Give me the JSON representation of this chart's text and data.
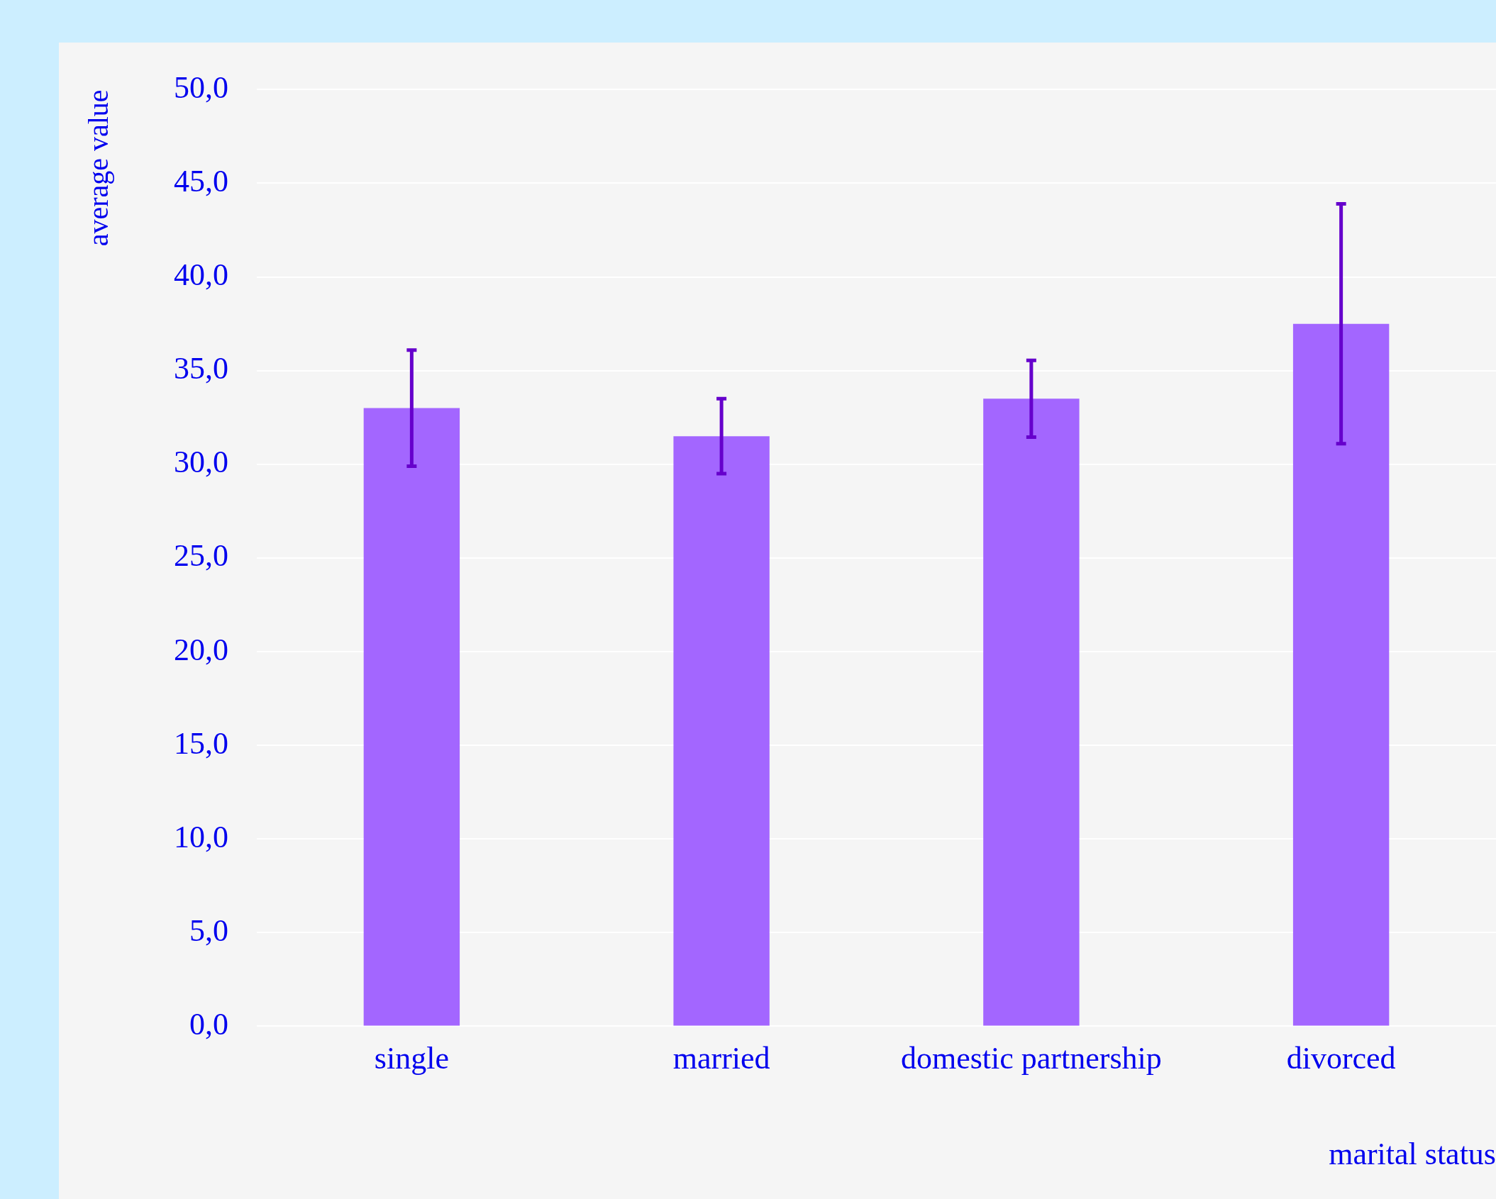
{
  "chart_data": {
    "type": "bar",
    "xlabel": "marital status",
    "ylabel": "average value",
    "categories": [
      "single",
      "married",
      "domestic partnership",
      "divorced"
    ],
    "values": [
      33.0,
      31.5,
      33.5,
      37.5
    ],
    "errors": [
      3.1,
      2.0,
      2.05,
      6.4
    ],
    "color": "#a366ff",
    "ylim": [
      0,
      50
    ],
    "yticks": [
      {
        "value": 0,
        "label": "0,0"
      },
      {
        "value": 5,
        "label": "5,0"
      },
      {
        "value": 10,
        "label": "10,0"
      },
      {
        "value": 15,
        "label": "15,0"
      },
      {
        "value": 20,
        "label": "20,0"
      },
      {
        "value": 25,
        "label": "25,0"
      },
      {
        "value": 30,
        "label": "30,0"
      },
      {
        "value": 35,
        "label": "35,0"
      },
      {
        "value": 40,
        "label": "40,0"
      },
      {
        "value": 45,
        "label": "45,0"
      },
      {
        "value": 50,
        "label": "50,0"
      }
    ],
    "grid": "y",
    "legend": false
  }
}
